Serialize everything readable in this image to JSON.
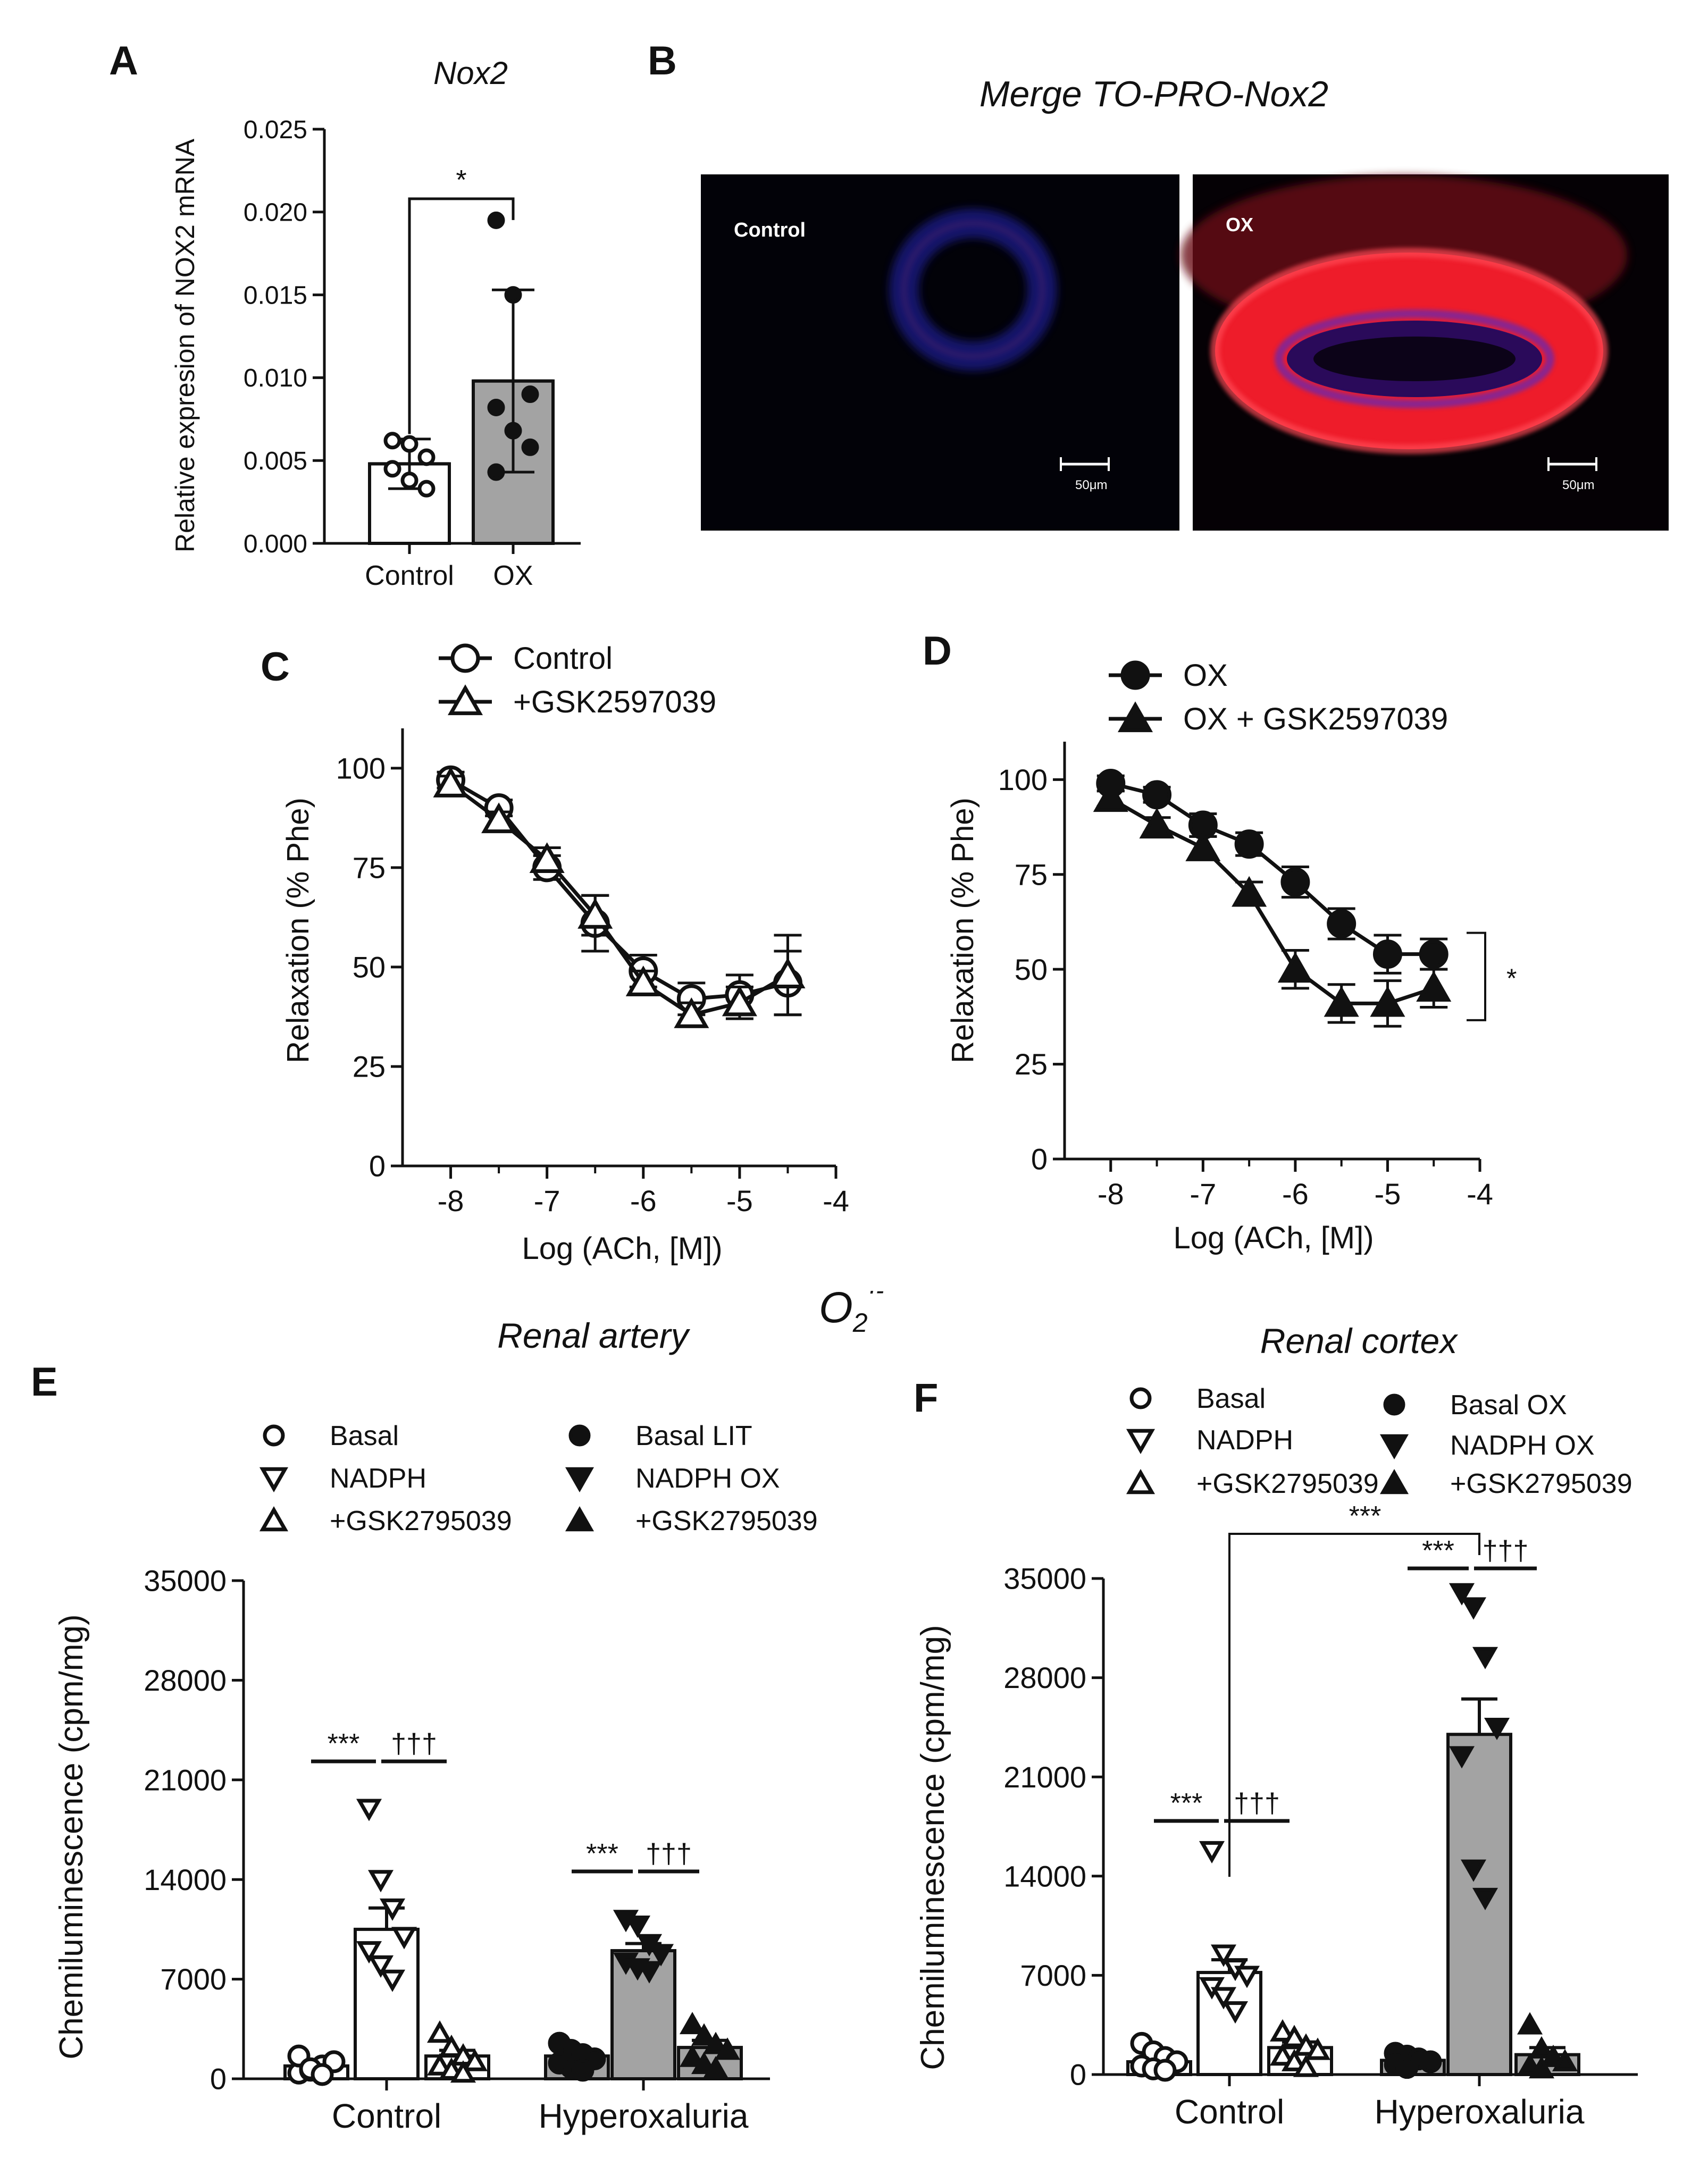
{
  "panel_letters": [
    "A",
    "B",
    "C",
    "D",
    "E",
    "F"
  ],
  "o2_label": "O",
  "o2_sub": "2",
  "o2_sup": "·-",
  "colors": {
    "ink": "#111111",
    "bar_gray": "#a3a3a3",
    "bar_white": "#ffffff",
    "nuclei": "#2a30b8",
    "nox2": "#ef1f2c"
  },
  "chart_data": [
    {
      "id": "A",
      "type": "bar",
      "title": "Nox2",
      "ylabel": "Relative expresion of  NOX2 mRNA",
      "categories": [
        "Control",
        "OX"
      ],
      "values": [
        0.0048,
        0.0098
      ],
      "sd": [
        0.0015,
        0.0055
      ],
      "fills": [
        "white",
        "gray"
      ],
      "points": [
        [
          0.0062,
          0.006,
          0.0052,
          0.0045,
          0.0038,
          0.0033
        ],
        [
          0.0195,
          0.015,
          0.009,
          0.0082,
          0.0068,
          0.0058,
          0.0043
        ]
      ],
      "point_style": [
        "open",
        "filled"
      ],
      "ylim": [
        0,
        0.025
      ],
      "yticks": [
        "0.000",
        "0.005",
        "0.010",
        "0.015",
        "0.020",
        "0.025"
      ],
      "significance": "*"
    },
    {
      "id": "B",
      "type": "image",
      "title": "Merge TO-PRO-Nox2",
      "images": [
        {
          "label": "Control",
          "scale": "50μm"
        },
        {
          "label": "OX",
          "scale": "50μm"
        }
      ]
    },
    {
      "id": "C",
      "type": "line",
      "xlabel": "Log (ACh, [M])",
      "ylabel": "Relaxation (% Phe)",
      "xlim": [
        -8.5,
        -4
      ],
      "ylim": [
        0,
        110
      ],
      "xticks": [
        "-8",
        "-7",
        "-6",
        "-5",
        "-4"
      ],
      "yticks": [
        "0",
        "25",
        "50",
        "75",
        "100"
      ],
      "x": [
        -8,
        -7.5,
        -7,
        -6.5,
        -6,
        -5.5,
        -5,
        -4.5
      ],
      "series": [
        {
          "name": "Control",
          "marker": "circle-open",
          "values": [
            97,
            90,
            75,
            61,
            49,
            42,
            43,
            46
          ],
          "err": [
            2,
            2,
            3,
            7,
            4,
            4,
            5,
            8
          ]
        },
        {
          "name": "+GSK2597039",
          "marker": "triangle-open",
          "values": [
            96,
            87,
            77,
            63,
            46,
            38,
            41,
            48
          ],
          "err": [
            2,
            2,
            3,
            5,
            3,
            3,
            4,
            10
          ]
        }
      ]
    },
    {
      "id": "D",
      "type": "line",
      "xlabel": "Log (ACh, [M])",
      "ylabel": "Relaxation (% Phe)",
      "xlim": [
        -8.5,
        -4
      ],
      "ylim": [
        0,
        110
      ],
      "xticks": [
        "-8",
        "-7",
        "-6",
        "-5",
        "-4"
      ],
      "yticks": [
        "0",
        "25",
        "50",
        "75",
        "100"
      ],
      "x": [
        -8,
        -7.5,
        -7,
        -6.5,
        -6,
        -5.5,
        -5,
        -4.5
      ],
      "series": [
        {
          "name": "OX",
          "marker": "circle-filled",
          "values": [
            99,
            96,
            88,
            83,
            73,
            62,
            54,
            54
          ],
          "err": [
            2,
            2,
            3,
            3,
            4,
            4,
            5,
            4
          ]
        },
        {
          "name": "OX + GSK2597039",
          "marker": "triangle-filled",
          "values": [
            95,
            88,
            82,
            70,
            50,
            41,
            41,
            45
          ],
          "err": [
            2,
            2,
            3,
            3,
            5,
            5,
            6,
            5
          ]
        }
      ],
      "significance": "*"
    },
    {
      "id": "E",
      "type": "bar",
      "title": "Renal artery",
      "ylabel": "Chemiluminescence (cpm/mg)",
      "ylim": [
        0,
        35000
      ],
      "yticks": [
        "0",
        "7000",
        "14000",
        "21000",
        "28000",
        "35000"
      ],
      "groups": [
        "Control",
        "Hyperoxaluria"
      ],
      "legend": [
        "Basal",
        "NADPH",
        "+GSK2795039",
        "Basal LIT",
        "NADPH OX",
        "+GSK2795039"
      ],
      "bars": [
        {
          "group": "Control",
          "series": "Basal",
          "fill": "white",
          "marker": "circle-open",
          "value": 900,
          "err": 250,
          "points": [
            400,
            600,
            900,
            1200,
            1600,
            700,
            300
          ]
        },
        {
          "group": "Control",
          "series": "NADPH",
          "fill": "white",
          "marker": "tri-down-open",
          "value": 10500,
          "err": 1500,
          "points": [
            19000,
            14000,
            12000,
            10000,
            9000,
            8000,
            7000
          ]
        },
        {
          "group": "Control",
          "series": "+GSK2795039",
          "fill": "white",
          "marker": "tri-up-open",
          "value": 1600,
          "err": 400,
          "points": [
            3200,
            2200,
            1600,
            1200,
            900,
            600,
            400
          ]
        },
        {
          "group": "Hyperoxaluria",
          "series": "Basal LIT",
          "fill": "gray",
          "marker": "circle-filled",
          "value": 1600,
          "err": 300,
          "points": [
            2500,
            2000,
            1700,
            1400,
            1100,
            800,
            600
          ]
        },
        {
          "group": "Hyperoxaluria",
          "series": "NADPH OX",
          "fill": "gray",
          "marker": "tri-down-filled",
          "value": 9000,
          "err": 500,
          "points": [
            11200,
            10800,
            9500,
            8800,
            8200,
            7800,
            7600
          ]
        },
        {
          "group": "Hyperoxaluria",
          "series": "+GSK2795039",
          "fill": "gray",
          "marker": "tri-up-filled",
          "value": 2200,
          "err": 500,
          "points": [
            3800,
            3000,
            2400,
            2000,
            1500,
            1000,
            700
          ]
        }
      ],
      "significance": [
        {
          "label": "***",
          "bars": [
            0,
            1
          ]
        },
        {
          "label": "†††",
          "bars": [
            1,
            2
          ]
        },
        {
          "label": "***",
          "bars": [
            3,
            4
          ]
        },
        {
          "label": "†††",
          "bars": [
            4,
            5
          ]
        }
      ]
    },
    {
      "id": "F",
      "type": "bar",
      "title": "Renal cortex",
      "ylabel": "Chemiluminescence (cpm/mg)",
      "ylim": [
        0,
        35000
      ],
      "yticks": [
        "0",
        "7000",
        "14000",
        "21000",
        "28000",
        "35000"
      ],
      "groups": [
        "Control",
        "Hyperoxaluria"
      ],
      "legend": [
        "Basal",
        "NADPH",
        "+GSK2795039",
        "Basal OX",
        "NADPH OX",
        "+GSK2795039"
      ],
      "bars": [
        {
          "group": "Control",
          "series": "Basal",
          "fill": "white",
          "marker": "circle-open",
          "value": 900,
          "err": 300,
          "points": [
            2200,
            1600,
            1200,
            900,
            600,
            400,
            300
          ]
        },
        {
          "group": "Control",
          "series": "NADPH",
          "fill": "white",
          "marker": "tri-down-open",
          "value": 7200,
          "err": 900,
          "points": [
            15800,
            8500,
            7500,
            7000,
            6200,
            5500,
            4500
          ]
        },
        {
          "group": "Control",
          "series": "+GSK2795039",
          "fill": "white",
          "marker": "tri-up-open",
          "value": 1900,
          "err": 400,
          "points": [
            3000,
            2600,
            2000,
            1700,
            1300,
            900,
            500
          ]
        },
        {
          "group": "Hyperoxaluria",
          "series": "Basal OX",
          "fill": "gray",
          "marker": "circle-filled",
          "value": 1000,
          "err": 200,
          "points": [
            1500,
            1300,
            1100,
            900,
            700,
            500
          ]
        },
        {
          "group": "Hyperoxaluria",
          "series": "NADPH OX",
          "fill": "gray",
          "marker": "tri-down-filled",
          "value": 24000,
          "err": 2500,
          "points": [
            34000,
            33000,
            29500,
            24500,
            22500,
            14500,
            12500
          ]
        },
        {
          "group": "Hyperoxaluria",
          "series": "+GSK2795039",
          "fill": "gray",
          "marker": "tri-up-filled",
          "value": 1400,
          "err": 500,
          "points": [
            3500,
            1800,
            1200,
            900,
            600,
            400
          ]
        }
      ],
      "significance": [
        {
          "label": "***",
          "bars": [
            0,
            1
          ]
        },
        {
          "label": "†††",
          "bars": [
            1,
            2
          ]
        },
        {
          "label": "***",
          "bars": [
            3,
            4
          ]
        },
        {
          "label": "†††",
          "bars": [
            4,
            5
          ]
        },
        {
          "label": "***",
          "bars": [
            1,
            4
          ],
          "style": "bracket"
        }
      ]
    }
  ]
}
